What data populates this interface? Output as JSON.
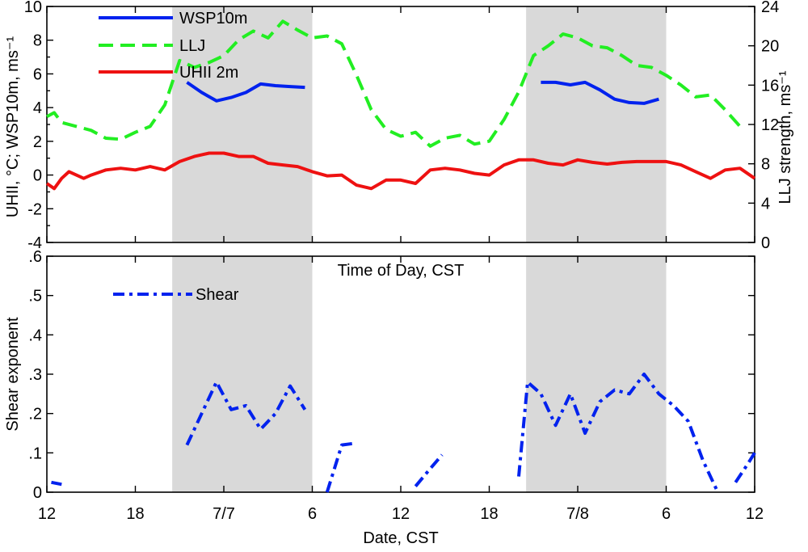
{
  "chart_data": [
    {
      "type": "line",
      "panel": "top",
      "xlabel": "Time of Day, CST",
      "ylabel": "UHII, °C; WSP10m, ms⁻¹",
      "y2label": "LLJ strength, ms⁻¹",
      "xlim": [
        12,
        60
      ],
      "ylim": [
        -4,
        10
      ],
      "y2lim": [
        0,
        24
      ],
      "yticks": [
        "-4",
        "-2",
        "0",
        "2",
        "4",
        "6",
        "8",
        "10"
      ],
      "y2ticks": [
        "0",
        "4",
        "8",
        "12",
        "16",
        "20",
        "24"
      ],
      "shaded_intervals": [
        [
          20.5,
          30
        ],
        [
          44.5,
          54
        ]
      ],
      "legend": [
        "WSP10m",
        "LLJ",
        "UHII 2m"
      ],
      "series": [
        {
          "name": "WSP10m",
          "axis": "left",
          "color": "#0022ee",
          "style": "solid",
          "x": [
            21.5,
            22.5,
            23.5,
            24.5,
            25.5,
            26.5,
            27.5,
            28.5,
            29.5
          ],
          "y": [
            5.5,
            4.9,
            4.4,
            4.6,
            4.9,
            5.4,
            5.3,
            5.25,
            5.2
          ]
        },
        {
          "name": "WSP10m",
          "axis": "left",
          "color": "#0022ee",
          "style": "solid",
          "x": [
            45.5,
            46.5,
            47.5,
            48.5,
            49.5,
            50.5,
            51.5,
            52.5,
            53.5
          ],
          "y": [
            5.5,
            5.5,
            5.35,
            5.5,
            5.05,
            4.5,
            4.3,
            4.25,
            4.5
          ]
        },
        {
          "name": "LLJ",
          "axis": "right",
          "color": "#22ee22",
          "style": "dashed",
          "x": [
            12,
            12.5,
            13,
            14,
            15,
            16,
            17,
            18,
            19,
            20,
            21,
            22,
            23,
            24,
            25,
            26,
            27,
            28,
            29,
            30,
            31,
            32,
            33,
            34,
            35,
            36,
            37,
            38,
            39,
            40,
            41,
            42,
            43,
            44,
            45,
            46,
            47,
            48,
            49,
            50,
            51,
            52,
            53,
            54,
            55,
            56,
            57,
            58,
            59
          ],
          "y": [
            12.8,
            13.2,
            12.2,
            11.8,
            11.4,
            10.6,
            10.5,
            11.2,
            11.8,
            14.0,
            18.5,
            17.8,
            18.3,
            19.0,
            20.6,
            21.5,
            20.8,
            22.5,
            21.6,
            20.8,
            21.0,
            20.2,
            17.0,
            13.5,
            11.5,
            10.8,
            11.2,
            9.8,
            10.6,
            10.9,
            10.0,
            10.3,
            12.5,
            15.3,
            19.0,
            20.0,
            21.2,
            20.8,
            20.0,
            19.8,
            19.0,
            18.0,
            17.8,
            17.0,
            16.0,
            14.8,
            15.0,
            13.5,
            11.8
          ]
        },
        {
          "name": "UHII 2m",
          "axis": "left",
          "color": "#ee1111",
          "style": "solid",
          "x": [
            12,
            12.5,
            13,
            13.5,
            14,
            14.5,
            15,
            16,
            17,
            18,
            19,
            20,
            21,
            22,
            23,
            24,
            25,
            26,
            27,
            28,
            29,
            30,
            31,
            32,
            33,
            34,
            35,
            36,
            37,
            38,
            39,
            40,
            41,
            42,
            43,
            44,
            45,
            46,
            47,
            48,
            49,
            50,
            51,
            52,
            53,
            54,
            55,
            56,
            57,
            58,
            59,
            60
          ],
          "y": [
            -0.5,
            -0.8,
            -0.2,
            0.2,
            0.0,
            -0.2,
            0.0,
            0.3,
            0.4,
            0.3,
            0.5,
            0.3,
            0.8,
            1.1,
            1.3,
            1.3,
            1.1,
            1.1,
            0.7,
            0.6,
            0.5,
            0.2,
            -0.05,
            0.0,
            -0.6,
            -0.8,
            -0.3,
            -0.3,
            -0.5,
            0.3,
            0.4,
            0.3,
            0.1,
            0.0,
            0.6,
            0.9,
            0.9,
            0.7,
            0.6,
            0.9,
            0.75,
            0.65,
            0.75,
            0.8,
            0.8,
            0.8,
            0.6,
            0.2,
            -0.2,
            0.3,
            0.4,
            -0.2
          ]
        }
      ]
    },
    {
      "type": "line",
      "panel": "bottom",
      "xlabel": "Date, CST",
      "ylabel": "Shear exponent",
      "xlim": [
        12,
        60
      ],
      "ylim": [
        0,
        0.6
      ],
      "yticks": [
        "0",
        ".1",
        ".2",
        ".3",
        ".4",
        ".5",
        ".6"
      ],
      "xticks": [
        "12",
        "18",
        "7/7",
        "6",
        "12",
        "18",
        "7/8",
        "6",
        "12"
      ],
      "shaded_intervals": [
        [
          20.5,
          30
        ],
        [
          44.5,
          54
        ]
      ],
      "legend": [
        "Shear"
      ],
      "series": [
        {
          "name": "Shear",
          "color": "#0022ee",
          "style": "dashdot",
          "segments": [
            {
              "x": [
                12.3,
                13.0
              ],
              "y": [
                0.025,
                0.02
              ]
            },
            {
              "x": [
                21.5,
                22.5,
                23.5,
                24.5,
                25.5,
                26.5,
                27.5,
                28.5,
                29.5
              ],
              "y": [
                0.12,
                0.2,
                0.28,
                0.21,
                0.22,
                0.16,
                0.2,
                0.27,
                0.21
              ]
            },
            {
              "x": [
                31.0,
                32.0,
                33.0
              ],
              "y": [
                0.0,
                0.12,
                0.125
              ]
            },
            {
              "x": [
                37.0,
                38.0,
                38.8
              ],
              "y": [
                0.015,
                0.06,
                0.095
              ]
            },
            {
              "x": [
                44.0,
                44.6,
                45.5,
                46.5,
                47.5,
                48.5,
                49.5,
                50.5,
                51.5,
                52.5,
                53.5,
                54.5,
                55.5,
                56.5,
                57.5
              ],
              "y": [
                0.04,
                0.28,
                0.25,
                0.17,
                0.25,
                0.15,
                0.23,
                0.26,
                0.25,
                0.3,
                0.25,
                0.22,
                0.18,
                0.08,
                0.0
              ]
            },
            {
              "x": [
                58.7,
                59.5,
                60
              ],
              "y": [
                0.025,
                0.07,
                0.1
              ]
            }
          ]
        }
      ]
    }
  ]
}
